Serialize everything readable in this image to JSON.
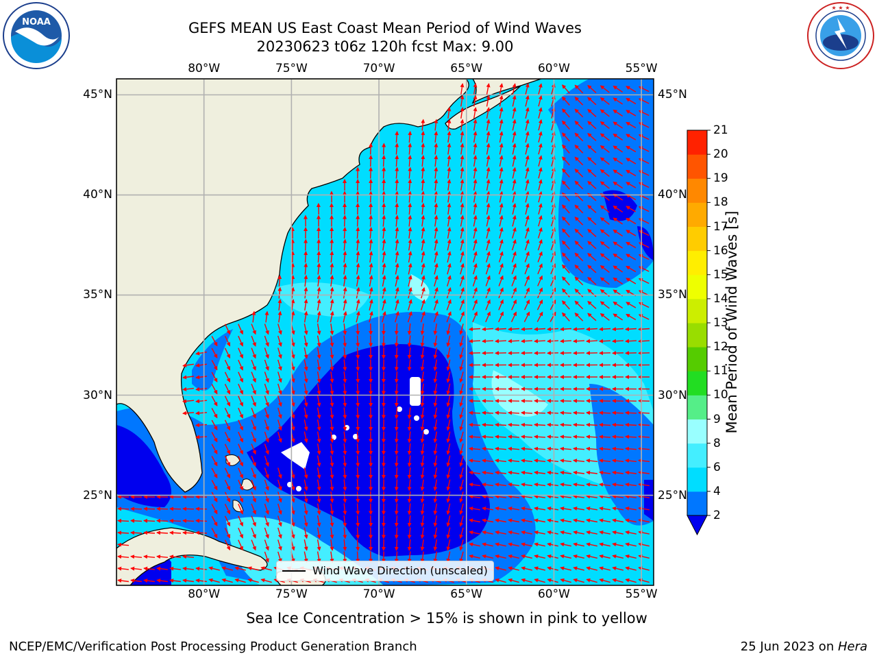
{
  "title": {
    "line1": "GEFS MEAN US East Coast Mean Period of Wind Waves",
    "line2": "20230623 t06z 120h fcst   Max: 9.00"
  },
  "logos": {
    "left": {
      "name": "noaa-logo",
      "text": "NOAA",
      "ring_text": "NATIONAL OCEANIC AND ATMOSPHERIC ADMINISTRATION · U.S. DEPARTMENT OF COMMERCE"
    },
    "right": {
      "name": "nws-logo",
      "ring_text": "NATIONAL WEATHER SERVICE"
    }
  },
  "map": {
    "lon_labels": [
      "80°W",
      "75°W",
      "70°W",
      "65°W",
      "60°W",
      "55°W"
    ],
    "lat_labels": [
      "45°N",
      "40°N",
      "35°N",
      "30°N",
      "25°N"
    ],
    "lon_values": [
      -80,
      -75,
      -70,
      -65,
      -60,
      -55
    ],
    "lat_values": [
      45,
      40,
      35,
      30,
      25
    ],
    "extent": {
      "lon_min": -85,
      "lon_max": -54.3,
      "lat_min": 20.5,
      "lat_max": 45.8
    },
    "land_color": "#efefde",
    "arrow_color": "#ff0000",
    "grid_color": "#b0b0b0"
  },
  "legend": {
    "label": "Wind Wave Direction (unscaled)"
  },
  "colorbar": {
    "label": "Mean Period of Wind Waves [s]",
    "ticks": [
      "2",
      "4",
      "6",
      "8",
      "9",
      "10",
      "11",
      "12",
      "13",
      "14",
      "15",
      "16",
      "17",
      "18",
      "19",
      "20",
      "21"
    ],
    "levels": [
      2,
      4,
      6,
      8,
      9,
      10,
      11,
      12,
      13,
      14,
      15,
      16,
      17,
      18,
      19,
      20,
      21
    ],
    "colors": [
      "#0077ff",
      "#00ddff",
      "#44eeff",
      "#99ffff",
      "#55ee88",
      "#22dd22",
      "#55cc00",
      "#99dd00",
      "#ccee00",
      "#eeff00",
      "#ffee00",
      "#ffcc00",
      "#ffaa00",
      "#ff8800",
      "#ff5500",
      "#ff2200"
    ],
    "extend_color": "#0000ee"
  },
  "note": "Sea Ice Concentration > 15% is shown in pink to yellow",
  "footer": {
    "left": "NCEP/EMC/Verification Post Processing Product Generation Branch",
    "date": "25 Jun 2023 on ",
    "machine": "Hera"
  }
}
